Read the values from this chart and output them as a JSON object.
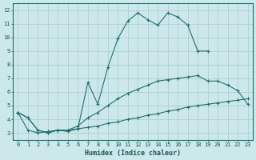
{
  "xlabel": "Humidex (Indice chaleur)",
  "background_color": "#cce8ea",
  "grid_color": "#aacfd2",
  "line_color": "#1e7070",
  "xlim": [
    -0.5,
    23.5
  ],
  "ylim": [
    2.5,
    12.5
  ],
  "yticks": [
    3,
    4,
    5,
    6,
    7,
    8,
    9,
    10,
    11,
    12
  ],
  "xticks": [
    0,
    1,
    2,
    3,
    4,
    5,
    6,
    7,
    8,
    9,
    10,
    11,
    12,
    13,
    14,
    15,
    16,
    17,
    18,
    19,
    20,
    21,
    22,
    23
  ],
  "line1_x": [
    0,
    1,
    2,
    3,
    4,
    5,
    6,
    7,
    8,
    9,
    10,
    11,
    12,
    13,
    14,
    15,
    16,
    17,
    18,
    19
  ],
  "line1_y": [
    4.5,
    4.1,
    3.2,
    3.0,
    3.2,
    3.1,
    3.3,
    6.7,
    5.1,
    7.8,
    9.9,
    11.2,
    11.8,
    11.3,
    10.9,
    11.8,
    11.5,
    10.9,
    9.0,
    9.0
  ],
  "line2_x": [
    0,
    1,
    2,
    3,
    4,
    5,
    6,
    7,
    8,
    9,
    10,
    11,
    12,
    13,
    14,
    15,
    16,
    17,
    18,
    19,
    20,
    21,
    22,
    23
  ],
  "line2_y": [
    4.5,
    4.1,
    3.2,
    3.0,
    3.2,
    3.2,
    3.5,
    4.1,
    4.5,
    5.0,
    5.5,
    5.9,
    6.2,
    6.5,
    6.8,
    6.9,
    7.0,
    7.1,
    7.2,
    6.8,
    6.8,
    6.5,
    6.1,
    5.1
  ],
  "line3_x": [
    0,
    1,
    2,
    3,
    4,
    5,
    6,
    7,
    8,
    9,
    10,
    11,
    12,
    13,
    14,
    15,
    16,
    17,
    18,
    19,
    20,
    21,
    22,
    23
  ],
  "line3_y": [
    4.5,
    3.2,
    3.0,
    3.1,
    3.2,
    3.2,
    3.3,
    3.4,
    3.5,
    3.7,
    3.8,
    4.0,
    4.1,
    4.3,
    4.4,
    4.6,
    4.7,
    4.9,
    5.0,
    5.1,
    5.2,
    5.3,
    5.4,
    5.5
  ]
}
